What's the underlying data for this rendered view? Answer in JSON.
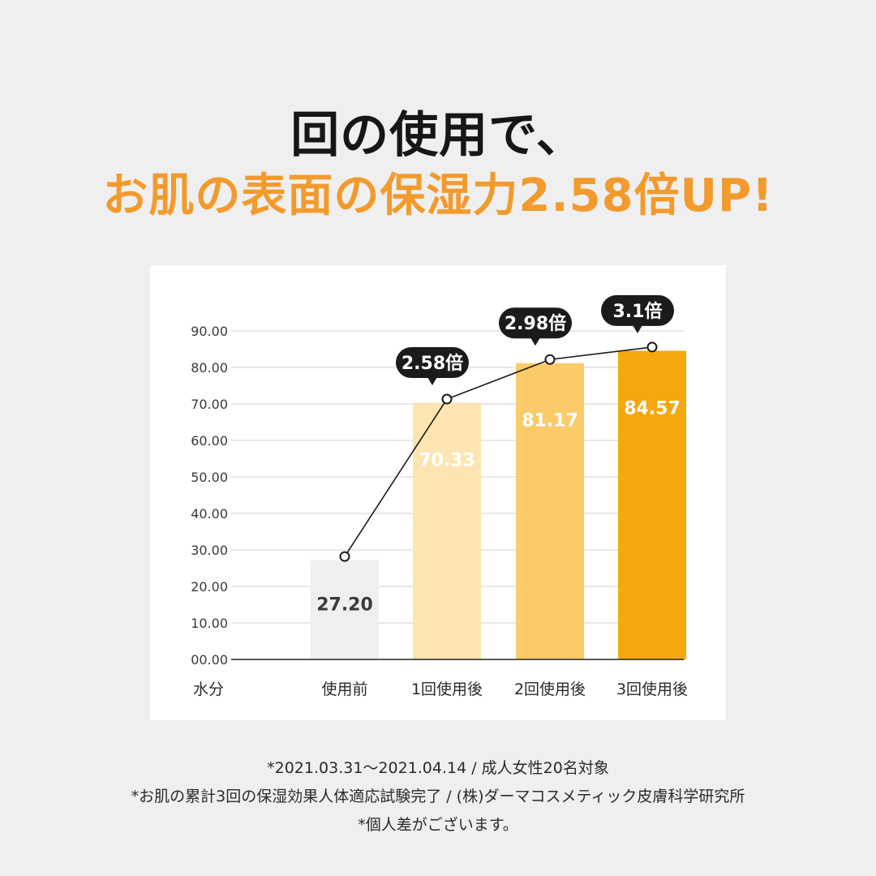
{
  "title_line1": "回の使用で、",
  "title_line2": "お肌の表面の保湿力2.58倍UP!",
  "chart_data": {
    "type": "bar",
    "ylabel": "水分",
    "ylim": [
      0,
      90
    ],
    "yticks": [
      "00.00",
      "10.00",
      "20.00",
      "30.00",
      "40.00",
      "50.00",
      "60.00",
      "70.00",
      "80.00",
      "90.00"
    ],
    "ytick_values": [
      0,
      10,
      20,
      30,
      40,
      50,
      60,
      70,
      80,
      90
    ],
    "categories": [
      "使用前",
      "1回使用後",
      "2回使用後",
      "3回使用後"
    ],
    "values": [
      27.2,
      70.33,
      81.17,
      84.57
    ],
    "value_labels": [
      "27.20",
      "70.33",
      "81.17",
      "84.57"
    ],
    "multipliers": [
      "",
      "2.58倍",
      "2.98倍",
      "3.1倍"
    ],
    "bar_colors": [
      "#efefef",
      "#fde5b2",
      "#fbcb6a",
      "#f5a80e"
    ],
    "value_label_colors": [
      "#3a3a3a",
      "#ffffff",
      "#ffffff",
      "#ffffff"
    ],
    "line": true,
    "grid": true
  },
  "footnotes": [
    "*2021.03.31〜2021.04.14 / 成人女性20名対象",
    "*お肌の累計3回の保湿効果人体適応試験完了 / (株)ダーマコスメティック皮膚科学研究所",
    "*個人差がございます。"
  ]
}
